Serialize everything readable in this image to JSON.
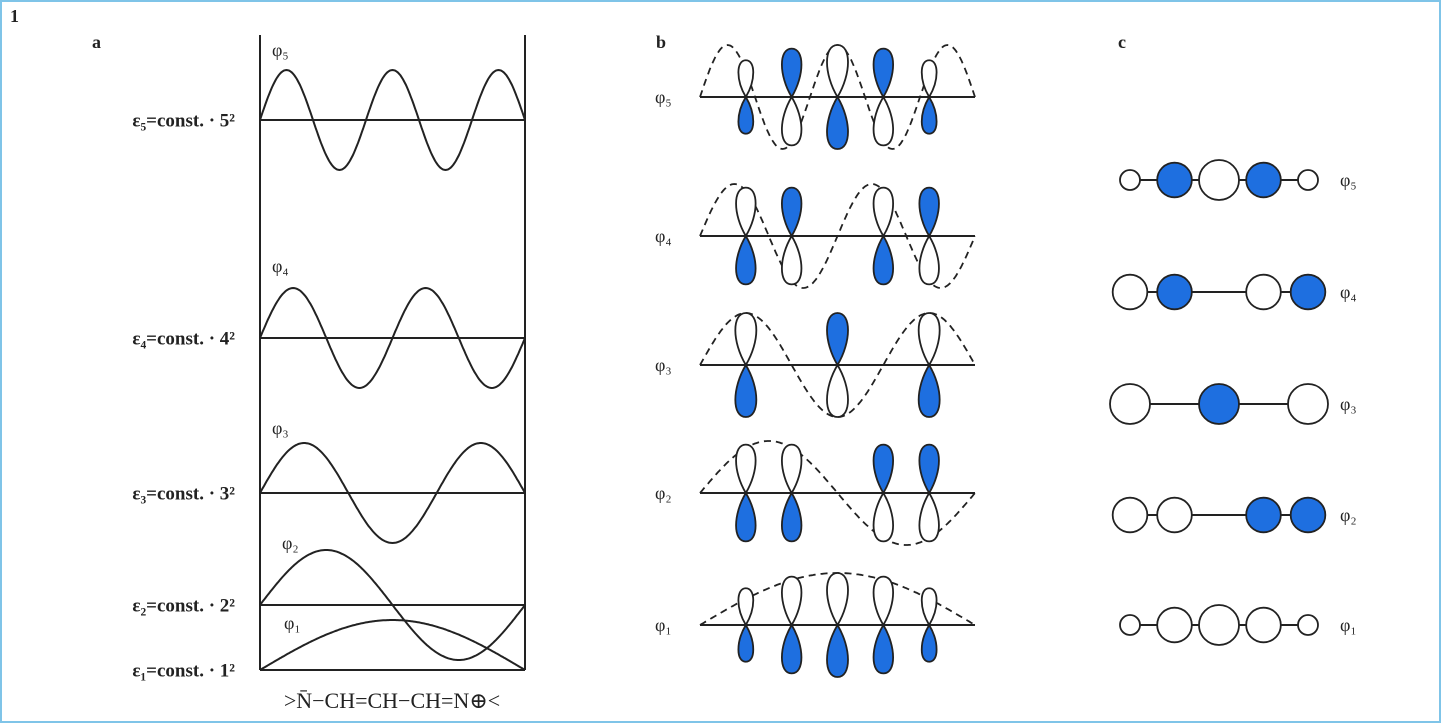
{
  "figure_number": "1",
  "panel_a": {
    "label": "a",
    "energies": [
      "ε₅=const. · 5²",
      "ε₄=const. · 4²",
      "ε₃=const. · 3²",
      "ε₂=const. · 2²",
      "ε₁=const. · 1²"
    ],
    "orbitals": [
      "φ₅",
      "φ₄",
      "φ₃",
      "φ₂",
      "φ₁"
    ],
    "formula": ">N̄−CH=CH−CH=N⊕<"
  },
  "panel_b": {
    "label": "b",
    "orbitals": [
      "φ₅",
      "φ₄",
      "φ₃",
      "φ₂",
      "φ₁"
    ]
  },
  "panel_c": {
    "label": "c",
    "orbitals": [
      "φ₅",
      "φ₄",
      "φ₃",
      "φ₂",
      "φ₁"
    ]
  }
}
